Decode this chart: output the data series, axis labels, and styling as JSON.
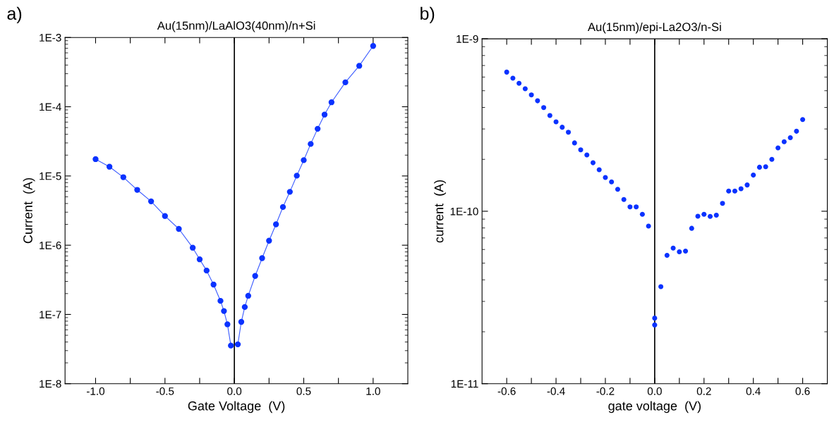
{
  "chart_data": [
    {
      "type": "line",
      "title": "Au(15nm)/LaAlO3(40nm)/n+Si",
      "xlabel": "Gate Voltage  (V)",
      "ylabel": "Current  (A)",
      "annotations": [
        "a)"
      ],
      "log": "y",
      "marker": "circle",
      "line_style": "solid",
      "grid": false,
      "legend": false,
      "xlim": [
        -1.22,
        1.25
      ],
      "xticks": [
        {
          "value": -1.0,
          "label": "-1.0"
        },
        {
          "value": -0.75,
          "label": null
        },
        {
          "value": -0.5,
          "label": "-0.5"
        },
        {
          "value": -0.25,
          "label": null
        },
        {
          "value": 0.0,
          "label": "0.0"
        },
        {
          "value": 0.25,
          "label": null
        },
        {
          "value": 0.5,
          "label": "0.5"
        },
        {
          "value": 0.75,
          "label": null
        },
        {
          "value": 1.0,
          "label": "1.0"
        }
      ],
      "ylim": [
        1e-08,
        0.001
      ],
      "yticks": [
        {
          "value": 1e-08,
          "label": "1E-8"
        },
        {
          "value": 1e-07,
          "label": "1E-7"
        },
        {
          "value": 1e-06,
          "label": "1E-6"
        },
        {
          "value": 1e-05,
          "label": "1E-5"
        },
        {
          "value": 0.0001,
          "label": "1E-4"
        },
        {
          "value": 0.001,
          "label": "1E-3"
        }
      ],
      "ref_lines": [
        {
          "axis": "x",
          "value": 0,
          "color": "#000000"
        }
      ],
      "series": [
        {
          "color": "#0a32ff",
          "x": [
            -1.0,
            -0.9,
            -0.8,
            -0.7,
            -0.6,
            -0.5,
            -0.4,
            -0.3,
            -0.25,
            -0.2,
            -0.15,
            -0.1,
            -0.075,
            -0.05,
            -0.025
          ],
          "values": [
            1.75e-05,
            1.36e-05,
            9.6e-06,
            6.3e-06,
            4.3e-06,
            2.64e-06,
            1.72e-06,
            9.2e-07,
            6.25e-07,
            4.3e-07,
            2.7e-07,
            1.57e-07,
            1.12e-07,
            7.2e-08,
            3.55e-08
          ]
        },
        {
          "color": "#0a32ff",
          "x": [
            0.025,
            0.05,
            0.075,
            0.1,
            0.15,
            0.2,
            0.25,
            0.3,
            0.35,
            0.4,
            0.45,
            0.5,
            0.55,
            0.6,
            0.65,
            0.7,
            0.8,
            0.9,
            1.0
          ],
          "values": [
            3.7e-08,
            7.8e-08,
            1.28e-07,
            1.86e-07,
            3.6e-07,
            6.5e-07,
            1.16e-06,
            2e-06,
            3.56e-06,
            5.9e-06,
            1.01e-05,
            1.69e-05,
            2.9e-05,
            4.8e-05,
            7.7e-05,
            0.000116,
            0.000225,
            0.00039,
            0.000755
          ]
        }
      ]
    },
    {
      "type": "scatter",
      "title": "Au(15nm)/epi-La2O3/n-Si",
      "xlabel": "gate voltage  (V)",
      "ylabel": "current  (A)",
      "annotations": [
        "b)"
      ],
      "log": "y",
      "marker": "circle",
      "grid": false,
      "legend": false,
      "xlim": [
        -0.7,
        0.7
      ],
      "xticks": [
        {
          "value": -0.6,
          "label": "-0.6"
        },
        {
          "value": -0.5,
          "label": null
        },
        {
          "value": -0.4,
          "label": "-0.4"
        },
        {
          "value": -0.3,
          "label": null
        },
        {
          "value": -0.2,
          "label": "-0.2"
        },
        {
          "value": -0.1,
          "label": null
        },
        {
          "value": 0.0,
          "label": "0.0"
        },
        {
          "value": 0.1,
          "label": null
        },
        {
          "value": 0.2,
          "label": "0.2"
        },
        {
          "value": 0.3,
          "label": null
        },
        {
          "value": 0.4,
          "label": "0.4"
        },
        {
          "value": 0.5,
          "label": null
        },
        {
          "value": 0.6,
          "label": "0.6"
        }
      ],
      "ylim": [
        1e-11,
        1e-09
      ],
      "yticks": [
        {
          "value": 1e-11,
          "label": "1E-11"
        },
        {
          "value": 1e-10,
          "label": "1E-10"
        },
        {
          "value": 1e-09,
          "label": "1E-9"
        }
      ],
      "ref_lines": [
        {
          "axis": "x",
          "value": 0,
          "color": "#000000"
        }
      ],
      "series": [
        {
          "color": "#0a32ff",
          "x": [
            -0.6,
            -0.575,
            -0.55,
            -0.525,
            -0.5,
            -0.475,
            -0.45,
            -0.425,
            -0.4,
            -0.375,
            -0.35,
            -0.325,
            -0.3,
            -0.275,
            -0.25,
            -0.225,
            -0.2,
            -0.175,
            -0.15,
            -0.125,
            -0.1,
            -0.075,
            -0.05,
            -0.025,
            0.0,
            0.0,
            0.025,
            0.05,
            0.075,
            0.1,
            0.125,
            0.15,
            0.175,
            0.2,
            0.225,
            0.25,
            0.275,
            0.3,
            0.325,
            0.35,
            0.375,
            0.4,
            0.425,
            0.45,
            0.475,
            0.5,
            0.525,
            0.55,
            0.575,
            0.6
          ],
          "values": [
            6.41e-10,
            5.91e-10,
            5.52e-10,
            5.13e-10,
            4.73e-10,
            4.37e-10,
            3.99e-10,
            3.59e-10,
            3.3e-10,
            3.07e-10,
            2.87e-10,
            2.49e-10,
            2.27e-10,
            2.12e-10,
            1.91e-10,
            1.74e-10,
            1.57e-10,
            1.48e-10,
            1.34e-10,
            1.17e-10,
            1.06e-10,
            1.06e-10,
            9.6e-11,
            8.2e-11,
            2.4e-11,
            2.19e-11,
            3.65e-11,
            5.55e-11,
            6.11e-11,
            5.82e-11,
            5.87e-11,
            7.96e-11,
            9.35e-11,
            9.6e-11,
            9.33e-11,
            9.48e-11,
            1.11e-10,
            1.31e-10,
            1.31e-10,
            1.35e-10,
            1.42e-10,
            1.62e-10,
            1.8e-10,
            1.81e-10,
            2e-10,
            2.33e-10,
            2.53e-10,
            2.67e-10,
            2.91e-10,
            3.4e-10
          ]
        }
      ]
    }
  ]
}
